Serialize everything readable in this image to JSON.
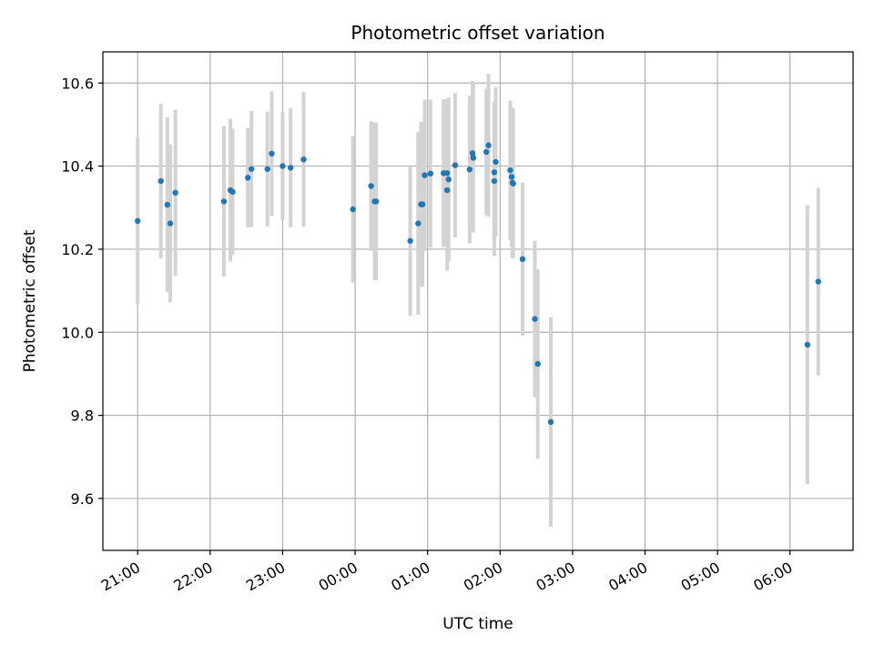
{
  "chart_data": {
    "type": "scatter",
    "title": "Photometric offset variation",
    "xlabel": "UTC time",
    "ylabel": "Photometric offset",
    "x_unit": "UTC hour-of-night (hours after midnight, evening hours negative)",
    "xlim_hours": [
      -3.48,
      6.87
    ],
    "ylim": [
      9.475,
      10.675
    ],
    "grid": true,
    "x_ticks": [
      {
        "hour": -3,
        "label": "21:00"
      },
      {
        "hour": -2,
        "label": "22:00"
      },
      {
        "hour": -1,
        "label": "23:00"
      },
      {
        "hour": 0,
        "label": "00:00"
      },
      {
        "hour": 1,
        "label": "01:00"
      },
      {
        "hour": 2,
        "label": "02:00"
      },
      {
        "hour": 3,
        "label": "03:00"
      },
      {
        "hour": 4,
        "label": "04:00"
      },
      {
        "hour": 5,
        "label": "05:00"
      },
      {
        "hour": 6,
        "label": "06:00"
      }
    ],
    "y_ticks": [
      {
        "value": 9.6,
        "label": "9.6"
      },
      {
        "value": 9.8,
        "label": "9.8"
      },
      {
        "value": 10.0,
        "label": "10.0"
      },
      {
        "value": 10.2,
        "label": "10.2"
      },
      {
        "value": 10.4,
        "label": "10.4"
      },
      {
        "value": 10.6,
        "label": "10.6"
      }
    ],
    "point_color": "#1f77b4",
    "errorbar_color": "#d3d3d3",
    "points": [
      {
        "x": -3.0,
        "y": 10.268,
        "err": 0.2
      },
      {
        "x": -2.68,
        "y": 10.364,
        "err": 0.186
      },
      {
        "x": -2.59,
        "y": 10.307,
        "err": 0.21
      },
      {
        "x": -2.55,
        "y": 10.262,
        "err": 0.19
      },
      {
        "x": -2.48,
        "y": 10.336,
        "err": 0.2
      },
      {
        "x": -1.81,
        "y": 10.315,
        "err": 0.181
      },
      {
        "x": -1.72,
        "y": 10.342,
        "err": 0.172
      },
      {
        "x": -1.69,
        "y": 10.338,
        "err": 0.152
      },
      {
        "x": -1.48,
        "y": 10.372,
        "err": 0.12
      },
      {
        "x": -1.43,
        "y": 10.393,
        "err": 0.14
      },
      {
        "x": -1.21,
        "y": 10.393,
        "err": 0.138
      },
      {
        "x": -1.15,
        "y": 10.43,
        "err": 0.15
      },
      {
        "x": -1.0,
        "y": 10.4,
        "err": 0.13
      },
      {
        "x": -0.89,
        "y": 10.396,
        "err": 0.143
      },
      {
        "x": -0.71,
        "y": 10.416,
        "err": 0.162
      },
      {
        "x": -0.03,
        "y": 10.296,
        "err": 0.176
      },
      {
        "x": 0.22,
        "y": 10.352,
        "err": 0.156
      },
      {
        "x": 0.27,
        "y": 10.315,
        "err": 0.19
      },
      {
        "x": 0.29,
        "y": 10.315,
        "err": 0.19
      },
      {
        "x": 0.76,
        "y": 10.22,
        "err": 0.18
      },
      {
        "x": 0.87,
        "y": 10.262,
        "err": 0.22
      },
      {
        "x": 0.91,
        "y": 10.308,
        "err": 0.198
      },
      {
        "x": 0.93,
        "y": 10.308,
        "err": 0.198
      },
      {
        "x": 0.96,
        "y": 10.378,
        "err": 0.182
      },
      {
        "x": 1.04,
        "y": 10.382,
        "err": 0.178
      },
      {
        "x": 1.22,
        "y": 10.383,
        "err": 0.178
      },
      {
        "x": 1.27,
        "y": 10.383,
        "err": 0.178
      },
      {
        "x": 1.27,
        "y": 10.342,
        "err": 0.194
      },
      {
        "x": 1.29,
        "y": 10.368,
        "err": 0.198
      },
      {
        "x": 1.38,
        "y": 10.402,
        "err": 0.174
      },
      {
        "x": 1.58,
        "y": 10.392,
        "err": 0.178
      },
      {
        "x": 1.62,
        "y": 10.431,
        "err": 0.174
      },
      {
        "x": 1.63,
        "y": 10.42,
        "err": 0.18
      },
      {
        "x": 1.81,
        "y": 10.434,
        "err": 0.152
      },
      {
        "x": 1.84,
        "y": 10.45,
        "err": 0.172
      },
      {
        "x": 1.92,
        "y": 10.385,
        "err": 0.17
      },
      {
        "x": 1.92,
        "y": 10.364,
        "err": 0.18
      },
      {
        "x": 1.94,
        "y": 10.41,
        "err": 0.18
      },
      {
        "x": 2.14,
        "y": 10.39,
        "err": 0.168
      },
      {
        "x": 2.16,
        "y": 10.374,
        "err": 0.168
      },
      {
        "x": 2.17,
        "y": 10.36,
        "err": 0.18
      },
      {
        "x": 2.18,
        "y": 10.358,
        "err": 0.18
      },
      {
        "x": 2.31,
        "y": 10.176,
        "err": 0.184
      },
      {
        "x": 2.48,
        "y": 10.032,
        "err": 0.188
      },
      {
        "x": 2.52,
        "y": 9.924,
        "err": 0.228
      },
      {
        "x": 2.7,
        "y": 9.784,
        "err": 0.252
      },
      {
        "x": 6.24,
        "y": 9.97,
        "err": 0.336
      },
      {
        "x": 6.39,
        "y": 10.122,
        "err": 0.226
      }
    ]
  }
}
